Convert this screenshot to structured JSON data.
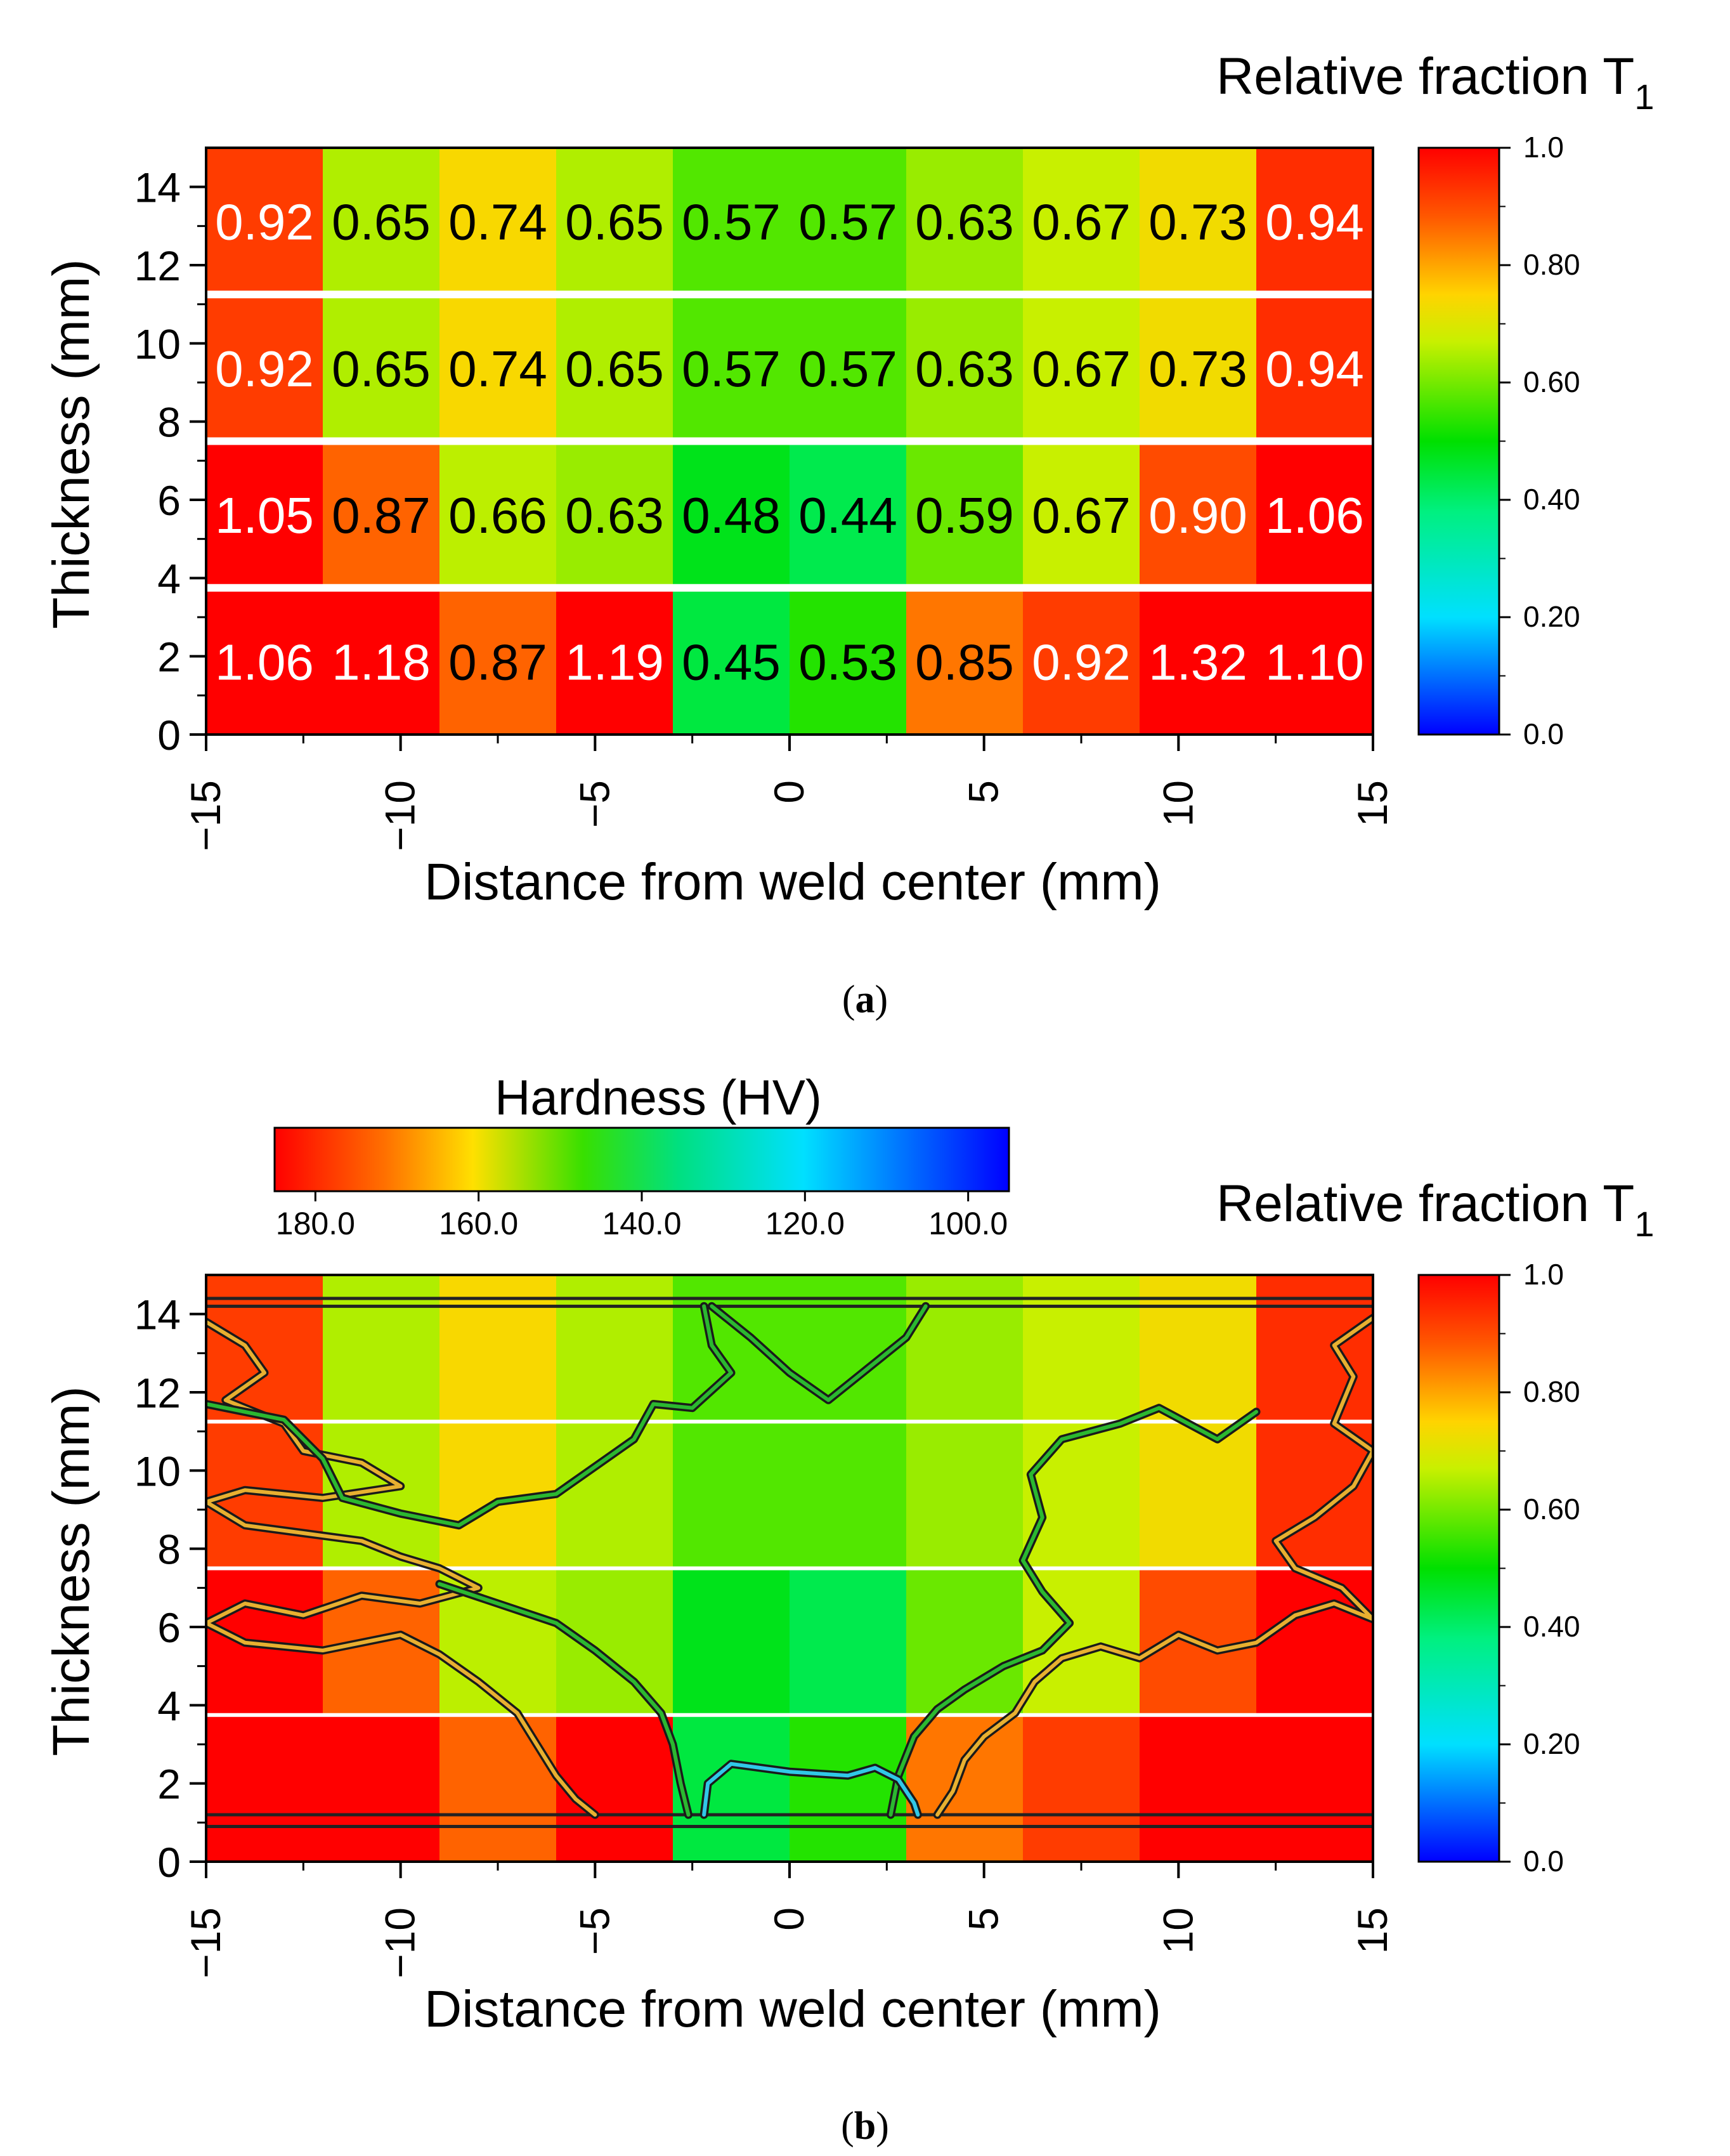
{
  "figure": {
    "panels": [
      {
        "id": "a",
        "caption_letter": "a",
        "colorbar": {
          "title_main": "Relative fraction T",
          "title_sub": "1",
          "tick_labels": [
            "1.0",
            "0.80",
            "0.60",
            "0.40",
            "0.20",
            "0.0"
          ]
        }
      },
      {
        "id": "b",
        "caption_letter": "b",
        "colorbar": {
          "title_main": "Relative fraction T",
          "title_sub": "1",
          "tick_labels": [
            "1.0",
            "0.80",
            "0.60",
            "0.40",
            "0.20",
            "0.0"
          ]
        },
        "hardness_bar": {
          "title": "Hardness (HV)",
          "tick_labels": [
            "180.0",
            "160.0",
            "140.0",
            "120.0",
            "100.0"
          ]
        }
      }
    ]
  },
  "chart_data": [
    {
      "type": "heatmap",
      "panel": "a",
      "xlabel": "Distance from weld center (mm)",
      "ylabel": "Thickness (mm)",
      "xlim": [
        -15,
        15
      ],
      "ylim": [
        0,
        15
      ],
      "xticks": [
        -15,
        -10,
        -5,
        0,
        5,
        10,
        15
      ],
      "yticks": [
        0,
        2,
        4,
        6,
        8,
        10,
        12,
        14
      ],
      "x_edges": [
        -15,
        -12,
        -9,
        -6,
        -3,
        0,
        3,
        6,
        9,
        12,
        15
      ],
      "rows": [
        {
          "y_range": [
            11.25,
            15
          ],
          "values": [
            0.92,
            0.65,
            0.74,
            0.65,
            0.57,
            0.57,
            0.63,
            0.67,
            0.73,
            0.94
          ],
          "labels": [
            "0.92",
            "0.65",
            "0.74",
            "0.65",
            "0.57",
            "0.57",
            "0.63",
            "0.67",
            "0.73",
            "0.94"
          ]
        },
        {
          "y_range": [
            7.5,
            11.25
          ],
          "values": [
            0.92,
            0.65,
            0.74,
            0.65,
            0.57,
            0.57,
            0.63,
            0.67,
            0.73,
            0.94
          ],
          "labels": [
            "0.92",
            "0.65",
            "0.74",
            "0.65",
            "0.57",
            "0.57",
            "0.63",
            "0.67",
            "0.73",
            "0.94"
          ]
        },
        {
          "y_range": [
            3.75,
            7.5
          ],
          "values": [
            1.05,
            0.87,
            0.66,
            0.63,
            0.48,
            0.44,
            0.59,
            0.67,
            0.9,
            1.06
          ],
          "labels": [
            "1.05",
            "0.87",
            "0.66",
            "0.63",
            "0.48",
            "0.44",
            "0.59",
            "0.67",
            "0.90",
            "1.06"
          ]
        },
        {
          "y_range": [
            0,
            3.75
          ],
          "values": [
            1.06,
            1.18,
            0.87,
            1.19,
            0.45,
            0.53,
            0.85,
            0.92,
            1.32,
            1.1
          ],
          "labels": [
            "1.06",
            "1.18",
            "0.87",
            "1.19",
            "0.45",
            "0.53",
            "0.85",
            "0.92",
            "1.32",
            "1.10"
          ]
        }
      ],
      "colorbar": {
        "title": "Relative fraction T1",
        "range": [
          0.0,
          1.0
        ],
        "ticks": [
          1.0,
          0.8,
          0.6,
          0.4,
          0.2,
          0.0
        ]
      }
    },
    {
      "type": "heatmap",
      "panel": "b",
      "xlabel": "Distance from weld center (mm)",
      "ylabel": "Thickness (mm)",
      "xlim": [
        -15,
        15
      ],
      "ylim": [
        0,
        15
      ],
      "xticks": [
        -15,
        -10,
        -5,
        0,
        5,
        10,
        15
      ],
      "yticks": [
        0,
        2,
        4,
        6,
        8,
        10,
        12,
        14
      ],
      "note": "Same T1 relative-fraction map as panel (a), overlaid with hardness (HV) contour lines",
      "colorbar": {
        "title": "Relative fraction T1",
        "range": [
          0.0,
          1.0
        ],
        "ticks": [
          1.0,
          0.8,
          0.6,
          0.4,
          0.2,
          0.0
        ]
      },
      "hardness_colorbar": {
        "title": "Hardness (HV)",
        "range": [
          185,
          95
        ],
        "ticks": [
          180.0,
          160.0,
          140.0,
          120.0,
          100.0
        ]
      },
      "contours": [
        {
          "level_hv": 160,
          "color": "#e8b030",
          "points": [
            [
              -15,
              13.8
            ],
            [
              -14,
              13.2
            ],
            [
              -13.5,
              12.5
            ],
            [
              -14.5,
              11.8
            ],
            [
              -13,
              11.2
            ],
            [
              -12.5,
              10.5
            ],
            [
              -11,
              10.2
            ],
            [
              -10,
              9.6
            ],
            [
              -12,
              9.3
            ],
            [
              -14,
              9.5
            ],
            [
              -15,
              9.2
            ],
            [
              -14,
              8.6
            ],
            [
              -12.5,
              8.4
            ],
            [
              -11,
              8.2
            ],
            [
              -10,
              7.8
            ],
            [
              -9,
              7.5
            ],
            [
              -8,
              7
            ],
            [
              -9.5,
              6.6
            ],
            [
              -11,
              6.8
            ],
            [
              -12.5,
              6.3
            ],
            [
              -14,
              6.6
            ],
            [
              -15,
              6.1
            ],
            [
              -14,
              5.6
            ],
            [
              -12,
              5.4
            ],
            [
              -10,
              5.8
            ],
            [
              -9,
              5.3
            ],
            [
              -8,
              4.6
            ],
            [
              -7,
              3.8
            ],
            [
              -6.5,
              3
            ],
            [
              -6,
              2.2
            ],
            [
              -5.5,
              1.6
            ],
            [
              -5,
              1.2
            ]
          ]
        },
        {
          "level_hv": 160,
          "color": "#e8b030",
          "points": [
            [
              3.8,
              1.2
            ],
            [
              4.2,
              1.8
            ],
            [
              4.5,
              2.6
            ],
            [
              5,
              3.2
            ],
            [
              5.8,
              3.8
            ],
            [
              6.3,
              4.6
            ],
            [
              7,
              5.2
            ],
            [
              8,
              5.5
            ],
            [
              9,
              5.2
            ],
            [
              10,
              5.8
            ],
            [
              11,
              5.4
            ],
            [
              12,
              5.6
            ],
            [
              13,
              6.3
            ],
            [
              14,
              6.6
            ],
            [
              15,
              6.2
            ],
            [
              14.2,
              7
            ],
            [
              13,
              7.5
            ],
            [
              12.5,
              8.2
            ],
            [
              13.5,
              8.8
            ],
            [
              14.5,
              9.6
            ],
            [
              15,
              10.5
            ],
            [
              14,
              11.2
            ],
            [
              14.5,
              12.4
            ],
            [
              14,
              13.2
            ],
            [
              15,
              13.9
            ]
          ]
        },
        {
          "level_hv": 140,
          "color": "#2bb830",
          "points": [
            [
              -15,
              11.7
            ],
            [
              -13,
              11.3
            ],
            [
              -12,
              10.3
            ],
            [
              -11.5,
              9.3
            ],
            [
              -10,
              8.9
            ],
            [
              -8.5,
              8.6
            ],
            [
              -7.5,
              9.2
            ],
            [
              -6,
              9.4
            ],
            [
              -5,
              10.1
            ],
            [
              -4,
              10.8
            ],
            [
              -3.5,
              11.7
            ],
            [
              -2.5,
              11.6
            ],
            [
              -1.5,
              12.5
            ],
            [
              -2,
              13.2
            ],
            [
              -2.2,
              14.2
            ]
          ]
        },
        {
          "level_hv": 140,
          "color": "#2bb830",
          "points": [
            [
              -9,
              7.1
            ],
            [
              -7.5,
              6.6
            ],
            [
              -6,
              6.1
            ],
            [
              -5,
              5.4
            ],
            [
              -4,
              4.6
            ],
            [
              -3.3,
              3.8
            ],
            [
              -3,
              3
            ],
            [
              -2.8,
              2
            ],
            [
              -2.6,
              1.2
            ]
          ]
        },
        {
          "level_hv": 140,
          "color": "#2bb830",
          "points": [
            [
              2.6,
              1.2
            ],
            [
              2.8,
              2.2
            ],
            [
              3.2,
              3.2
            ],
            [
              3.8,
              3.9
            ],
            [
              4.5,
              4.4
            ],
            [
              5.5,
              5
            ],
            [
              6.5,
              5.4
            ],
            [
              7.2,
              6.1
            ],
            [
              6.5,
              6.9
            ],
            [
              6,
              7.7
            ],
            [
              6.5,
              8.8
            ],
            [
              6.2,
              9.9
            ],
            [
              7,
              10.8
            ],
            [
              8.5,
              11.2
            ],
            [
              9.5,
              11.6
            ],
            [
              11,
              10.8
            ],
            [
              12,
              11.5
            ]
          ]
        },
        {
          "level_hv": 140,
          "color": "#2bb830",
          "points": [
            [
              -2,
              14.2
            ],
            [
              -1,
              13.4
            ],
            [
              0,
              12.5
            ],
            [
              1,
              11.8
            ],
            [
              2,
              12.6
            ],
            [
              3,
              13.4
            ],
            [
              3.5,
              14.2
            ]
          ]
        },
        {
          "level_hv": 120,
          "color": "#30c8e8",
          "points": [
            [
              -2.2,
              1.2
            ],
            [
              -2.1,
              2
            ],
            [
              -1.5,
              2.5
            ],
            [
              0,
              2.3
            ],
            [
              1.5,
              2.2
            ],
            [
              2.2,
              2.4
            ],
            [
              2.8,
              2.1
            ],
            [
              3.2,
              1.5
            ],
            [
              3.3,
              1.2
            ]
          ]
        }
      ]
    }
  ]
}
